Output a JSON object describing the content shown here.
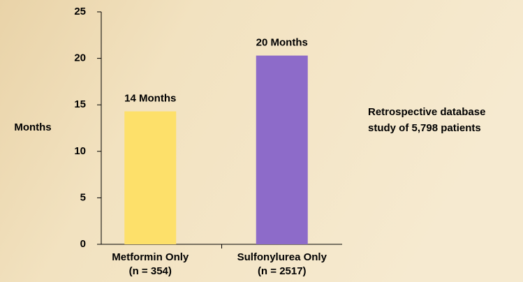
{
  "chart_data": {
    "type": "bar",
    "y_label": "Months",
    "categories": [
      [
        "Metformin Only",
        "(n = 354)"
      ],
      [
        "Sulfonylurea Only",
        "(n = 2517)"
      ]
    ],
    "values": [
      14.3,
      20.3
    ],
    "value_labels": [
      "14 Months",
      "20 Months"
    ],
    "colors": [
      "#fde06a",
      "#8d6bc9"
    ],
    "ylim": [
      0,
      25
    ],
    "yticks": [
      0,
      5,
      10,
      15,
      20,
      25
    ],
    "annotation": [
      "Retrospective database",
      "study of 5,798 patients"
    ]
  }
}
